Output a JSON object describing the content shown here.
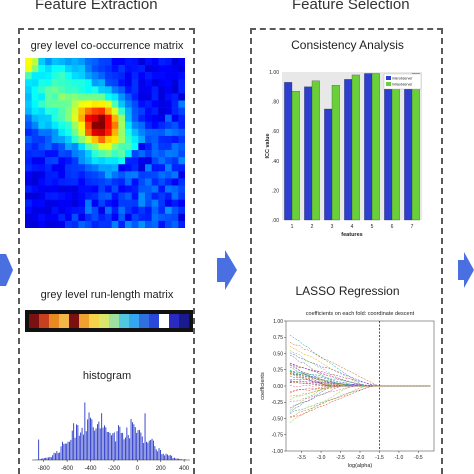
{
  "headings": {
    "left": "Feature Extraction",
    "right": "Feature Selection"
  },
  "extraction": {
    "glcm_label": "grey level co-occurrence matrix",
    "glrlm_label": "grey level run-length matrix",
    "histogram_label": "histogram",
    "glrlm_colors": [
      "#7a1010",
      "#c84020",
      "#e88a20",
      "#f5b64a",
      "#7a1010",
      "#f0a030",
      "#f6d24a",
      "#d9e86a",
      "#9ee0a0",
      "#50c8e0",
      "#35a6f0",
      "#2f6fe0",
      "#2b48d8",
      "#ffffff",
      "#2a2ac0",
      "#1a1a90"
    ],
    "histogram_axis": {
      "ticks": [
        "-800",
        "-600",
        "-400",
        "-200",
        "0",
        "200",
        "400"
      ],
      "min": -900,
      "max": 450
    }
  },
  "selection": {
    "consistency_title": "Consistency Analysis",
    "lasso_title": "LASSO Regression",
    "colors": {
      "blue": "#2c3fd0",
      "green": "#6ad03a"
    },
    "chart_data": [
      {
        "type": "bar",
        "categories": [
          "1",
          "2",
          "3",
          "4",
          "5",
          "6",
          "7"
        ],
        "series": [
          {
            "name": "interobserver",
            "values": [
              0.93,
              0.9,
              0.75,
              0.95,
              0.99,
              0.96,
              0.97
            ]
          },
          {
            "name": "intraobserver",
            "values": [
              0.87,
              0.94,
              0.91,
              0.98,
              0.99,
              0.91,
              0.99
            ]
          }
        ],
        "xlabel": "features",
        "ylabel": "ICC value",
        "ylim": [
          0,
          1.0
        ],
        "yticks": [
          ".00",
          ".20",
          ".40",
          ".60",
          ".80",
          "1.00"
        ],
        "legend": "top-right"
      },
      {
        "type": "line",
        "title": "coefficients on each fold: coordinate descent",
        "xlabel": "log(alpha)",
        "ylabel": "coefficients",
        "xlim": [
          -3.9,
          -0.1
        ],
        "ylim": [
          -1.0,
          1.0
        ],
        "xticks": [
          "-3.5",
          "-3.0",
          "-2.5",
          "-2.0",
          "-1.5",
          "-1.0",
          "-0.5"
        ],
        "yticks": [
          "1.00",
          "0.75",
          "0.50",
          "0.25",
          "0.00",
          "-0.25",
          "-0.50",
          "-0.75",
          "-1.00"
        ],
        "vline_x": -1.5
      }
    ]
  }
}
